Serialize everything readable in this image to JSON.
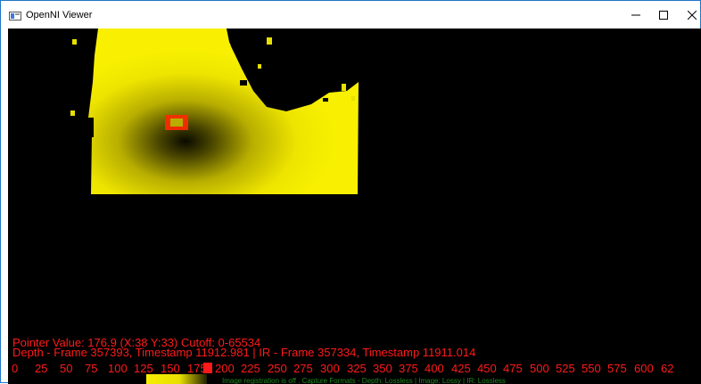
{
  "window": {
    "title": "OpenNI Viewer",
    "controls": {
      "minimize_icon": "minimize-icon",
      "maximize_icon": "maximize-icon",
      "close_icon": "close-icon"
    }
  },
  "overlay": {
    "pointer_line": "Pointer Value: 176.9 (X:38 Y:33) Cutoff: 0-65534",
    "frame_line": "Depth - Frame 357393, Timestamp 11912.981 | IR - Frame 357334, Timestamp 11911.014",
    "scale_ticks": [
      "0",
      "25",
      "50",
      "75",
      "100",
      "125",
      "150",
      "175",
      "200",
      "225",
      "250",
      "275",
      "300",
      "325",
      "350",
      "375",
      "400",
      "425",
      "450",
      "475",
      "500",
      "525",
      "550",
      "575",
      "600",
      "62"
    ],
    "status_line": "Image registration is off . Capture Formats - Depth: Lossless | Image: Lossy | IR: Lossless"
  },
  "colors": {
    "background": "#000000",
    "depth_yellow": "#f5ee00",
    "overlay_red": "#ff1a1a",
    "status_green": "#1f8a1f",
    "pointer_marker": "#ff2a00"
  }
}
